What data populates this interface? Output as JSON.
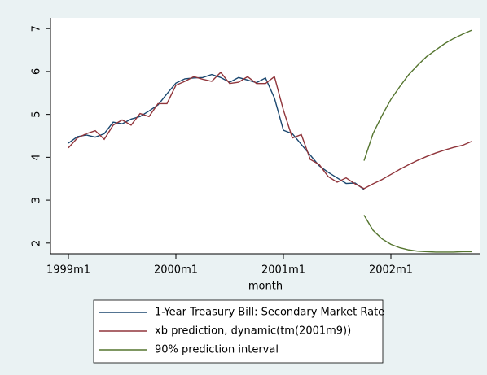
{
  "chart_data": {
    "type": "line",
    "x_label": "month",
    "x": [
      468,
      469,
      470,
      471,
      472,
      473,
      474,
      475,
      476,
      477,
      478,
      479,
      480,
      481,
      482,
      483,
      484,
      485,
      486,
      487,
      488,
      489,
      490,
      491,
      492,
      493,
      494,
      495,
      496,
      497,
      498,
      499,
      500,
      501,
      502,
      503,
      504,
      505,
      506,
      507,
      508,
      509,
      510,
      511,
      512,
      513
    ],
    "xlim": [
      466,
      514
    ],
    "xticks": [
      {
        "value": 468,
        "label": "1999m1"
      },
      {
        "value": 480,
        "label": "2000m1"
      },
      {
        "value": 492,
        "label": "2001m1"
      },
      {
        "value": 504,
        "label": "2002m1"
      }
    ],
    "ylim": [
      1.75,
      7.25
    ],
    "yticks": [
      2,
      3,
      4,
      5,
      6,
      7
    ],
    "grid": false,
    "series": [
      {
        "name": "1-Year Treasury Bill: Secondary Market Rate",
        "color": "#1a476f",
        "values": [
          4.33,
          4.48,
          4.52,
          4.47,
          4.55,
          4.82,
          4.78,
          4.89,
          4.95,
          5.08,
          5.22,
          5.48,
          5.73,
          5.83,
          5.85,
          5.86,
          5.93,
          5.86,
          5.75,
          5.86,
          5.8,
          5.74,
          5.85,
          5.38,
          4.63,
          4.55,
          4.3,
          4.05,
          3.8,
          3.65,
          3.52,
          3.39,
          3.4,
          3.25,
          null,
          null,
          null,
          null,
          null,
          null,
          null,
          null,
          null,
          null,
          null,
          null
        ]
      },
      {
        "name": "xb prediction, dynamic(tm(2001m9))",
        "color": "#90353b",
        "values": [
          4.22,
          4.45,
          4.55,
          4.62,
          4.42,
          4.75,
          4.87,
          4.75,
          5.02,
          4.95,
          5.25,
          5.25,
          5.68,
          5.77,
          5.88,
          5.82,
          5.77,
          5.98,
          5.72,
          5.75,
          5.88,
          5.72,
          5.72,
          5.88,
          5.1,
          4.45,
          4.53,
          3.95,
          3.83,
          3.55,
          3.42,
          3.52,
          3.38,
          3.27,
          3.38,
          3.48,
          3.6,
          3.72,
          3.83,
          3.93,
          4.02,
          4.1,
          4.17,
          4.23,
          4.28,
          4.37
        ]
      },
      {
        "name": "90% prediction interval",
        "color": "#55752f",
        "values": [
          null,
          null,
          null,
          null,
          null,
          null,
          null,
          null,
          null,
          null,
          null,
          null,
          null,
          null,
          null,
          null,
          null,
          null,
          null,
          null,
          null,
          null,
          null,
          null,
          null,
          null,
          null,
          null,
          null,
          null,
          null,
          null,
          null,
          3.92,
          4.55,
          4.97,
          5.35,
          5.65,
          5.93,
          6.15,
          6.35,
          6.5,
          6.65,
          6.77,
          6.87,
          6.96
        ],
        "lower": [
          null,
          null,
          null,
          null,
          null,
          null,
          null,
          null,
          null,
          null,
          null,
          null,
          null,
          null,
          null,
          null,
          null,
          null,
          null,
          null,
          null,
          null,
          null,
          null,
          null,
          null,
          null,
          null,
          null,
          null,
          null,
          null,
          null,
          2.65,
          2.3,
          2.1,
          1.97,
          1.89,
          1.84,
          1.81,
          1.8,
          1.79,
          1.79,
          1.79,
          1.8,
          1.8
        ]
      }
    ]
  }
}
